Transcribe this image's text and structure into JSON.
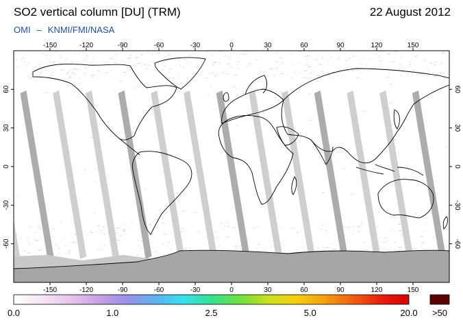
{
  "header": {
    "title": "SO2 vertical column [DU] (TRM)",
    "date": "22 August 2012",
    "credit_left": "OMI",
    "credit_sep": "–",
    "credit_right": "KNMI/FMI/NASA"
  },
  "map": {
    "projection": "equirectangular",
    "lon_range": [
      -180,
      180
    ],
    "lat_range": [
      -90,
      90
    ],
    "lon_ticks": [
      -150,
      -120,
      -90,
      -60,
      -30,
      0,
      30,
      60,
      90,
      120,
      150
    ],
    "lat_ticks": [
      60,
      30,
      0,
      -30,
      -60
    ],
    "lon_tick_labels": [
      "-150",
      "-120",
      "-90",
      "-60",
      "-30",
      "0",
      "30",
      "60",
      "90",
      "120",
      "150"
    ],
    "lat_tick_labels": [
      "60",
      "30",
      "0",
      "-30",
      "-60"
    ],
    "no_data_color": "#c8c8c8",
    "no_data_dark_color": "#a6a6a6"
  },
  "colorbar": {
    "labels": [
      "0.0",
      "1.0",
      "2.5",
      "5.0",
      "20.0"
    ],
    "overflow_label": ">50",
    "colors": [
      "#ffffff",
      "#f4e6f4",
      "#e8c4ec",
      "#c9a2e6",
      "#9a8fe6",
      "#5fb0f0",
      "#36e0f0",
      "#35e090",
      "#6ee040",
      "#c8e020",
      "#f5d010",
      "#f5a010",
      "#f06010",
      "#e82010",
      "#d40000"
    ],
    "overflow_color": "#5a0000"
  }
}
